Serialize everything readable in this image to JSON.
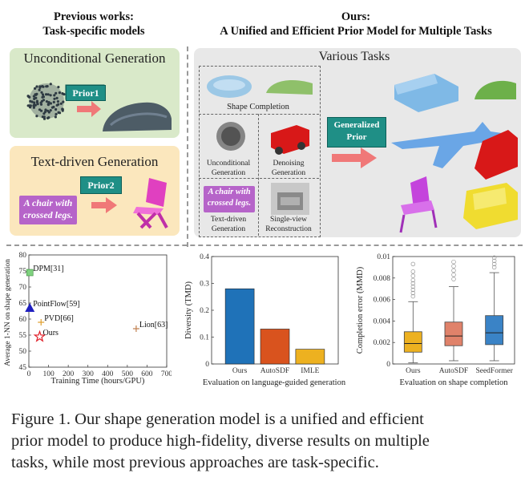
{
  "header": {
    "left_line1": "Previous works:",
    "left_line2": "Task-specific models",
    "right_line1": "Ours:",
    "right_line2": "A Unified and Efficient Prior Model for Multiple Tasks"
  },
  "left_panels": {
    "unconditional": {
      "title": "Unconditional Generation",
      "prior": "Prior1"
    },
    "text_driven": {
      "title": "Text-driven Generation",
      "prior": "Prior2",
      "prompt_line1": "A chair with",
      "prompt_line2": "crossed legs."
    }
  },
  "right_panel": {
    "title": "Various Tasks",
    "shape_completion": "Shape Completion",
    "uncond_line1": "Unconditional",
    "uncond_line2": "Generation",
    "denoise_line1": "Denoising",
    "denoise_line2": "Generation",
    "prompt_line1": "A chair with",
    "prompt_line2": "crossed legs.",
    "textdriven_line1": "Text-driven",
    "textdriven_line2": "Generation",
    "singleview_line1": "Single-view",
    "singleview_line2": "Reconstruction",
    "prior_line1": "Generalized",
    "prior_line2": "Prior"
  },
  "chart_data": [
    {
      "type": "scatter",
      "xlabel": "Training Time (hours/GPU)",
      "ylabel": "Average 1-NN on shape generation",
      "xlim": [
        0,
        700
      ],
      "ylim": [
        45,
        80
      ],
      "xticks": [
        "0",
        "100",
        "200",
        "300",
        "400",
        "500",
        "600",
        "700"
      ],
      "yticks": [
        "45",
        "50",
        "55",
        "60",
        "65",
        "70",
        "75",
        "80"
      ],
      "points": [
        {
          "label": "DPM[31]",
          "x": 5,
          "y": 74.5,
          "marker": "square",
          "color": "#7fd27f"
        },
        {
          "label": "PointFlow[59]",
          "x": 5,
          "y": 63.5,
          "marker": "triangle",
          "color": "#1f1fbf"
        },
        {
          "label": "PVD[66]",
          "x": 62,
          "y": 59,
          "marker": "plus",
          "color": "#e0a030"
        },
        {
          "label": "Ours",
          "x": 55,
          "y": 54.5,
          "marker": "star",
          "color": "#e0202a"
        },
        {
          "label": "Lion[63]",
          "x": 545,
          "y": 57,
          "marker": "plus",
          "color": "#c08050"
        }
      ]
    },
    {
      "type": "bar",
      "title": "Evaluation on language-guided generation",
      "ylabel": "Diversity (TMD)",
      "ylim": [
        0,
        0.4
      ],
      "yticks": [
        "0",
        "0.1",
        "0.2",
        "0.3",
        "0.4"
      ],
      "categories": [
        "Ours",
        "AutoSDF",
        "IMLE"
      ],
      "values": [
        0.28,
        0.13,
        0.055
      ],
      "colors": [
        "#1f72b8",
        "#d9531e",
        "#edb120"
      ]
    },
    {
      "type": "box",
      "title": "Evaluation on shape completion",
      "ylabel": "Completion error (MMD)",
      "ylim": [
        0,
        0.01
      ],
      "yticks": [
        "0",
        "0.002",
        "0.004",
        "0.006",
        "0.008",
        "0.01"
      ],
      "categories": [
        "Ours",
        "AutoSDF",
        "SeedFormer"
      ],
      "colors": [
        "#edb120",
        "#e0826a",
        "#3a83c6"
      ],
      "boxes": [
        {
          "q1": 0.0011,
          "median": 0.0019,
          "q3": 0.003,
          "whisker_low": 0.0001,
          "whisker_high": 0.0058
        },
        {
          "q1": 0.0017,
          "median": 0.0026,
          "q3": 0.0039,
          "whisker_low": 0.0003,
          "whisker_high": 0.0072
        },
        {
          "q1": 0.0018,
          "median": 0.0029,
          "q3": 0.0045,
          "whisker_low": 0.0003,
          "whisker_high": 0.0085
        }
      ],
      "outliers": [
        [
          0.0063,
          0.0066,
          0.0069,
          0.0072,
          0.0075,
          0.0078,
          0.0082,
          0.0086,
          0.0093
        ],
        [
          0.0079,
          0.0083,
          0.0087,
          0.0091,
          0.0095
        ],
        [
          0.009,
          0.0093,
          0.0096,
          0.0099
        ]
      ]
    }
  ],
  "caption": {
    "line1": "Figure 1.  Our shape generation model is a unified and efficient",
    "line2": "prior model to produce high-fidelity, diverse results on multiple",
    "line3": "tasks, while most previous approaches are task-specific."
  }
}
